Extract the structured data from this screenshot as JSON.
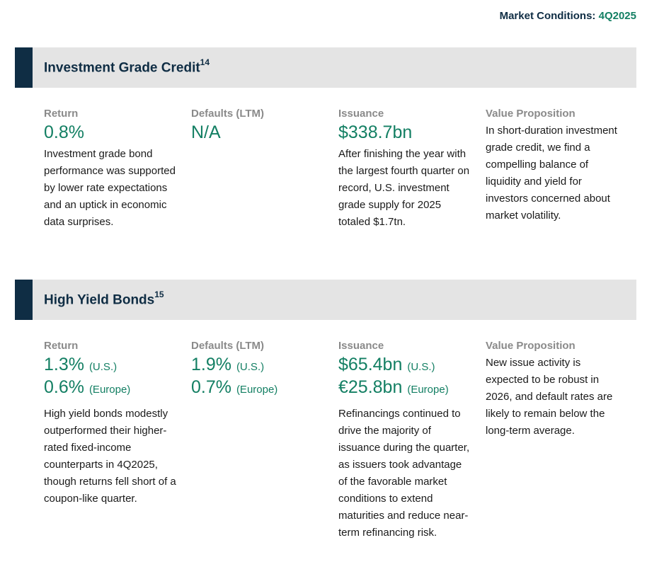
{
  "header": {
    "prefix": "Market Conditions: ",
    "period": "4Q2025"
  },
  "sections": [
    {
      "title": "Investment Grade Credit",
      "footnote": "14",
      "columns": [
        {
          "label": "Return",
          "metrics": [
            {
              "value": "0.8%",
              "qualifier": ""
            }
          ],
          "description": "Investment grade bond performance was supported by lower rate expectations and an uptick in economic data surprises."
        },
        {
          "label": "Defaults (LTM)",
          "metrics": [
            {
              "value": "N/A",
              "qualifier": ""
            }
          ],
          "description": ""
        },
        {
          "label": "Issuance",
          "metrics": [
            {
              "value": "$338.7bn",
              "qualifier": ""
            }
          ],
          "description": "After finishing the year with the largest fourth quarter on record, U.S. investment grade supply for 2025 totaled $1.7tn."
        },
        {
          "label": "Value Proposition",
          "metrics": [],
          "description": "In short-duration investment grade credit, we find a compelling balance of liquidity and yield for investors concerned about market volatility."
        }
      ]
    },
    {
      "title": "High Yield Bonds",
      "footnote": "15",
      "columns": [
        {
          "label": "Return",
          "metrics": [
            {
              "value": "1.3%",
              "qualifier": "(U.S.)"
            },
            {
              "value": "0.6%",
              "qualifier": "(Europe)"
            }
          ],
          "description": "High yield bonds modestly outperformed their higher-rated fixed-income counterparts in 4Q2025, though returns fell short of a coupon-like quarter."
        },
        {
          "label": "Defaults (LTM)",
          "metrics": [
            {
              "value": "1.9%",
              "qualifier": "(U.S.)"
            },
            {
              "value": "0.7%",
              "qualifier": "(Europe)"
            }
          ],
          "description": ""
        },
        {
          "label": "Issuance",
          "metrics": [
            {
              "value": "$65.4bn",
              "qualifier": "(U.S.)"
            },
            {
              "value": "€25.8bn",
              "qualifier": "(Europe)"
            }
          ],
          "description": "Refinancings continued to drive the majority of issuance during the quarter, as issuers took advantage of the favorable market conditions to extend maturities and reduce near-term refinancing risk."
        },
        {
          "label": "Value Proposition",
          "metrics": [],
          "description": "New issue activity is expected to be robust in 2026, and default rates are likely to remain below the long-term average."
        }
      ]
    }
  ]
}
